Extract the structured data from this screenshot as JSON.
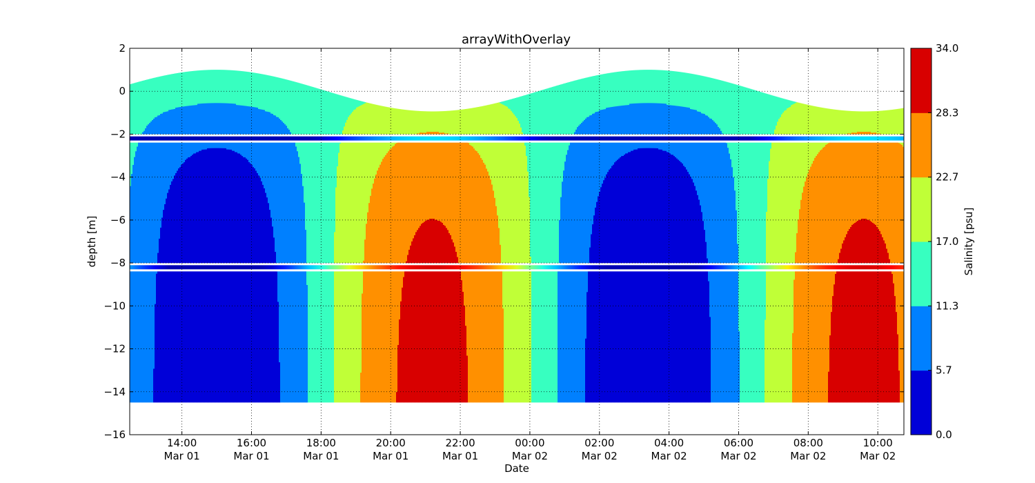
{
  "chart_data": {
    "type": "heatmap",
    "title": "arrayWithOverlay",
    "xlabel": "Date",
    "ylabel": "depth [m]",
    "ylim": [
      -16,
      2
    ],
    "xlim": [
      "Mar 01 12:30",
      "Mar 02 10:45"
    ],
    "grid": true,
    "y_ticks": [
      "2",
      "0",
      "−2",
      "−4",
      "−6",
      "−8",
      "−10",
      "−12",
      "−14",
      "−16"
    ],
    "x_ticks": [
      {
        "time": "14:00",
        "date": "Mar 01"
      },
      {
        "time": "16:00",
        "date": "Mar 01"
      },
      {
        "time": "18:00",
        "date": "Mar 01"
      },
      {
        "time": "20:00",
        "date": "Mar 01"
      },
      {
        "time": "22:00",
        "date": "Mar 01"
      },
      {
        "time": "00:00",
        "date": "Mar 02"
      },
      {
        "time": "02:00",
        "date": "Mar 02"
      },
      {
        "time": "04:00",
        "date": "Mar 02"
      },
      {
        "time": "06:00",
        "date": "Mar 02"
      },
      {
        "time": "08:00",
        "date": "Mar 02"
      },
      {
        "time": "10:00",
        "date": "Mar 02"
      }
    ],
    "colorbar": {
      "label": "Salinity [psu]",
      "levels": [
        "0.0",
        "5.7",
        "11.3",
        "17.0",
        "22.7",
        "28.3",
        "34.0"
      ],
      "colors": [
        "#0000d8",
        "#0080ff",
        "#37ffc0",
        "#c0ff37",
        "#ff9000",
        "#d80000"
      ]
    },
    "overlay_depths": [
      -2.2,
      -8.2
    ],
    "bottom_depth": -14.5,
    "tide_period_hours": 12.4,
    "colors": {
      "c0": "#0000d8",
      "c1": "#0080ff",
      "c2": "#37ffc0",
      "c3": "#c0ff37",
      "c4": "#ff9000",
      "c5": "#d80000",
      "overlay_dark": "#000080"
    }
  }
}
